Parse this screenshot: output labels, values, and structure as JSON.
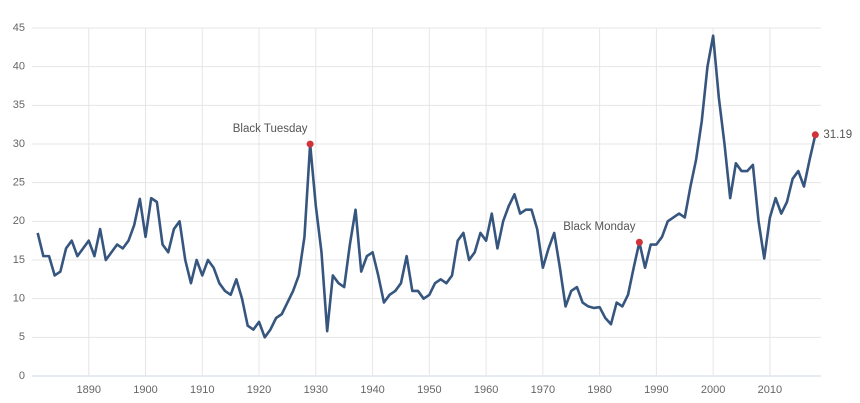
{
  "chart_data": {
    "type": "line",
    "x": [
      1881,
      1882,
      1883,
      1884,
      1885,
      1886,
      1887,
      1888,
      1889,
      1890,
      1891,
      1892,
      1893,
      1894,
      1895,
      1896,
      1897,
      1898,
      1899,
      1900,
      1901,
      1902,
      1903,
      1904,
      1905,
      1906,
      1907,
      1908,
      1909,
      1910,
      1911,
      1912,
      1913,
      1914,
      1915,
      1916,
      1917,
      1918,
      1919,
      1920,
      1921,
      1922,
      1923,
      1924,
      1925,
      1926,
      1927,
      1928,
      1929,
      1930,
      1931,
      1932,
      1933,
      1934,
      1935,
      1936,
      1937,
      1938,
      1939,
      1940,
      1941,
      1942,
      1943,
      1944,
      1945,
      1946,
      1947,
      1948,
      1949,
      1950,
      1951,
      1952,
      1953,
      1954,
      1955,
      1956,
      1957,
      1958,
      1959,
      1960,
      1961,
      1962,
      1963,
      1964,
      1965,
      1966,
      1967,
      1968,
      1969,
      1970,
      1971,
      1972,
      1973,
      1974,
      1975,
      1976,
      1977,
      1978,
      1979,
      1980,
      1981,
      1982,
      1983,
      1984,
      1985,
      1986,
      1987,
      1988,
      1989,
      1990,
      1991,
      1992,
      1993,
      1994,
      1995,
      1996,
      1997,
      1998,
      1999,
      2000,
      2001,
      2002,
      2003,
      2004,
      2005,
      2006,
      2007,
      2008,
      2009,
      2010,
      2011,
      2012,
      2013,
      2014,
      2015,
      2016,
      2017,
      2018
    ],
    "series": [
      {
        "color": "#36567f",
        "values": [
          18.5,
          15.5,
          15.5,
          13,
          13.5,
          16.5,
          17.5,
          15.5,
          16.5,
          17.5,
          15.5,
          19,
          15,
          16,
          17,
          16.5,
          17.5,
          19.5,
          22.9,
          18,
          23,
          22.5,
          17,
          16,
          19,
          20,
          15,
          12,
          15,
          13,
          15,
          14,
          12,
          11,
          10.5,
          12.5,
          10,
          6.5,
          6,
          7,
          5,
          6,
          7.5,
          8,
          9.5,
          11,
          13,
          18,
          29.99,
          22,
          16,
          5.8,
          13,
          12,
          11.5,
          17,
          21.5,
          13.5,
          15.5,
          16,
          13,
          9.5,
          10.5,
          11,
          12,
          15.5,
          11,
          11,
          10,
          10.5,
          12,
          12.5,
          12,
          13,
          17.5,
          18.5,
          15,
          16,
          18.5,
          17.5,
          21,
          16.5,
          20,
          22,
          23.5,
          21,
          21.5,
          21.5,
          19,
          14,
          16.5,
          18.5,
          14,
          9,
          11,
          11.5,
          9.5,
          9,
          8.8,
          8.9,
          7.5,
          6.7,
          9.5,
          9,
          10.5,
          14,
          17.3,
          14,
          17,
          17,
          18,
          20,
          20.5,
          21,
          20.5,
          24.5,
          28,
          33,
          40,
          44,
          36,
          30,
          23,
          27.5,
          26.5,
          26.5,
          27.3,
          20,
          15.2,
          20.5,
          23,
          21,
          22.5,
          25.5,
          26.5,
          24.5,
          28,
          31.19
        ]
      }
    ],
    "annotations": [
      {
        "x": 1929,
        "value": 29.99,
        "label": "Black Tuesday"
      },
      {
        "x": 1987,
        "value": 17.3,
        "label": "Black Monday"
      },
      {
        "x": 2018,
        "value": 31.19
      }
    ],
    "marker_color": "#d0343a",
    "xlim": [
      1880,
      2019
    ],
    "xticks": [
      1890,
      1900,
      1910,
      1920,
      1930,
      1940,
      1950,
      1960,
      1970,
      1980,
      1990,
      2000,
      2010
    ],
    "ylim": [
      0,
      45
    ],
    "yticks": [
      0,
      5,
      10,
      15,
      20,
      25,
      30,
      35,
      40,
      45
    ],
    "grid": true
  }
}
